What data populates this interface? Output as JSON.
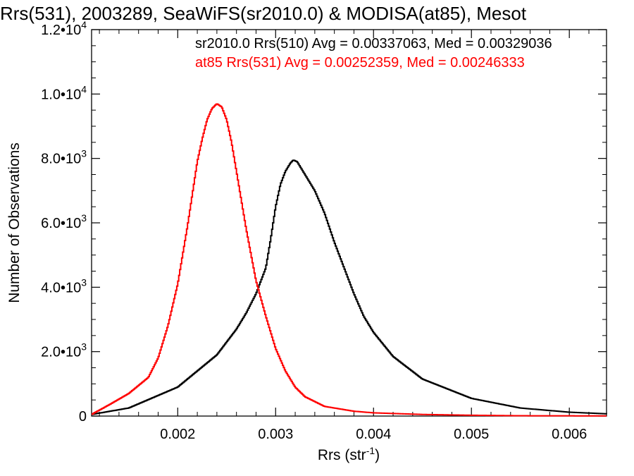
{
  "chart_data": {
    "type": "histogram",
    "title": "Rrs(531), 2003289, SeaWiFS(sr2010.0) & MODISA(at85), Mesot",
    "xlabel": "Rrs (str",
    "xlabel_sup": "-1",
    "xlabel_suffix": ")",
    "ylabel": "Number of Observations",
    "xlim": [
      0.00112,
      0.00638
    ],
    "ylim": [
      0,
      12000
    ],
    "x_ticks": [
      {
        "value": 0.002,
        "label": "0.002"
      },
      {
        "value": 0.003,
        "label": "0.003"
      },
      {
        "value": 0.004,
        "label": "0.004"
      },
      {
        "value": 0.005,
        "label": "0.005"
      },
      {
        "value": 0.006,
        "label": "0.006"
      }
    ],
    "y_ticks": [
      {
        "value": 0,
        "mantissa": "0",
        "exponent": ""
      },
      {
        "value": 2000,
        "mantissa": "2.0•10",
        "exponent": "3"
      },
      {
        "value": 4000,
        "mantissa": "4.0•10",
        "exponent": "3"
      },
      {
        "value": 6000,
        "mantissa": "6.0•10",
        "exponent": "3"
      },
      {
        "value": 8000,
        "mantissa": "8.0•10",
        "exponent": "3"
      },
      {
        "value": 10000,
        "mantissa": "1.0•10",
        "exponent": "4"
      },
      {
        "value": 12000,
        "mantissa": "1.2•10",
        "exponent": "4"
      }
    ],
    "grid": false,
    "legend_placement": "top-right",
    "series": [
      {
        "name": "sr2010.0 Rrs(510) Avg = 0.00337063, Med = 0.00329036",
        "color": "#000000",
        "x": [
          0.00112,
          0.0015,
          0.002,
          0.0022,
          0.0024,
          0.0026,
          0.0027,
          0.0028,
          0.0029,
          0.00295,
          0.003,
          0.00305,
          0.0031,
          0.00315,
          0.00318,
          0.00322,
          0.00326,
          0.0033,
          0.0034,
          0.0035,
          0.0036,
          0.0037,
          0.0038,
          0.0039,
          0.004,
          0.0042,
          0.0045,
          0.005,
          0.0055,
          0.006,
          0.00638
        ],
        "y": [
          50,
          250,
          900,
          1400,
          1900,
          2700,
          3200,
          3800,
          4600,
          5500,
          6500,
          7200,
          7600,
          7850,
          7950,
          7900,
          7700,
          7500,
          7000,
          6300,
          5400,
          4600,
          3800,
          3100,
          2600,
          1850,
          1150,
          550,
          250,
          120,
          70
        ]
      },
      {
        "name": "at85 Rrs(531) Avg = 0.00252359, Med = 0.00246333",
        "color": "#ff0000",
        "x": [
          0.00112,
          0.0013,
          0.0015,
          0.0017,
          0.0018,
          0.0019,
          0.002,
          0.0021,
          0.00215,
          0.0022,
          0.00225,
          0.0023,
          0.00235,
          0.0024,
          0.00245,
          0.0025,
          0.00255,
          0.0026,
          0.0027,
          0.0028,
          0.0029,
          0.003,
          0.0031,
          0.0032,
          0.0033,
          0.0035,
          0.0038,
          0.004,
          0.0045,
          0.005,
          0.0055,
          0.00638
        ],
        "y": [
          50,
          350,
          700,
          1200,
          1800,
          2800,
          4100,
          5900,
          6900,
          7900,
          8600,
          9200,
          9550,
          9700,
          9600,
          9200,
          8500,
          7600,
          5800,
          4200,
          3100,
          2100,
          1400,
          900,
          600,
          300,
          150,
          100,
          50,
          25,
          10,
          5
        ]
      }
    ]
  }
}
